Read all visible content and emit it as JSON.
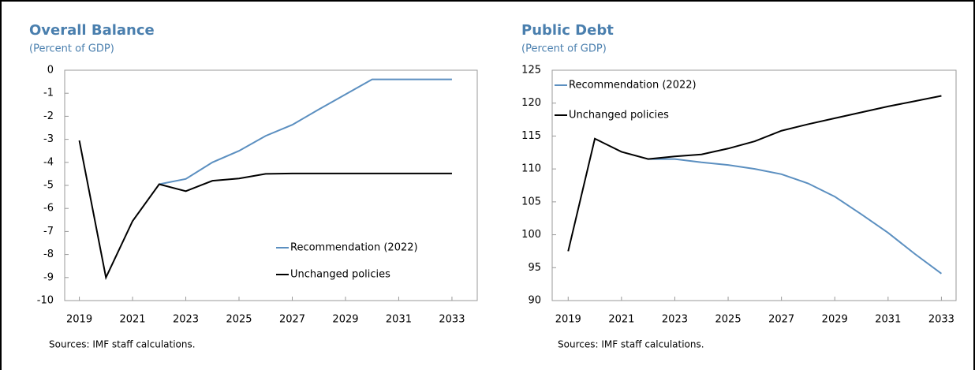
{
  "chart_data": [
    {
      "type": "line",
      "title": "Overall Balance",
      "subtitle": "(Percent of GDP)",
      "note": "Sources: IMF staff calculations.",
      "x": [
        2019,
        2020,
        2021,
        2022,
        2023,
        2024,
        2025,
        2026,
        2027,
        2028,
        2029,
        2030,
        2031,
        2032,
        2033
      ],
      "xlim": [
        2018.45,
        2033.95
      ],
      "xticks": [
        2019,
        2021,
        2023,
        2025,
        2027,
        2029,
        2031,
        2033
      ],
      "ylim": [
        -10,
        0
      ],
      "yticks": [
        -10,
        -9,
        -8,
        -7,
        -6,
        -5,
        -4,
        -3,
        -2,
        -1,
        0
      ],
      "legend": "lower right",
      "series": [
        {
          "name": "Recommendation (2022)",
          "color": "#5b8fc0",
          "values": [
            null,
            null,
            null,
            -4.95,
            -4.72,
            -4.0,
            -3.5,
            -2.85,
            -2.37,
            -1.7,
            -1.05,
            -0.4,
            -0.4,
            -0.4,
            -0.4
          ]
        },
        {
          "name": "Unchanged policies",
          "color": "#000000",
          "values": [
            -3.05,
            -9.0,
            -6.55,
            -4.95,
            -5.25,
            -4.8,
            -4.7,
            -4.5,
            -4.48,
            -4.48,
            -4.48,
            -4.48,
            -4.48,
            -4.48,
            -4.48
          ]
        }
      ]
    },
    {
      "type": "line",
      "title": "Public Debt",
      "subtitle": "(Percent of GDP)",
      "note": "Sources: IMF staff calculations.",
      "x": [
        2019,
        2020,
        2021,
        2022,
        2023,
        2024,
        2025,
        2026,
        2027,
        2028,
        2029,
        2030,
        2031,
        2032,
        2033
      ],
      "xlim": [
        2018.4,
        2033.55
      ],
      "xticks": [
        2019,
        2021,
        2023,
        2025,
        2027,
        2029,
        2031,
        2033
      ],
      "ylim": [
        90,
        125
      ],
      "yticks": [
        90,
        95,
        100,
        105,
        110,
        115,
        120,
        125
      ],
      "legend": "upper left",
      "series": [
        {
          "name": "Recommendation (2022)",
          "color": "#5b8fc0",
          "values": [
            null,
            null,
            null,
            111.5,
            111.5,
            111.0,
            110.6,
            110.0,
            109.2,
            107.8,
            105.8,
            103.1,
            100.3,
            97.1,
            94.1
          ]
        },
        {
          "name": "Unchanged policies",
          "color": "#000000",
          "values": [
            97.5,
            114.6,
            112.6,
            111.5,
            111.9,
            112.2,
            113.1,
            114.2,
            115.8,
            116.8,
            117.7,
            118.6,
            119.5,
            120.3,
            121.1
          ]
        }
      ]
    }
  ]
}
